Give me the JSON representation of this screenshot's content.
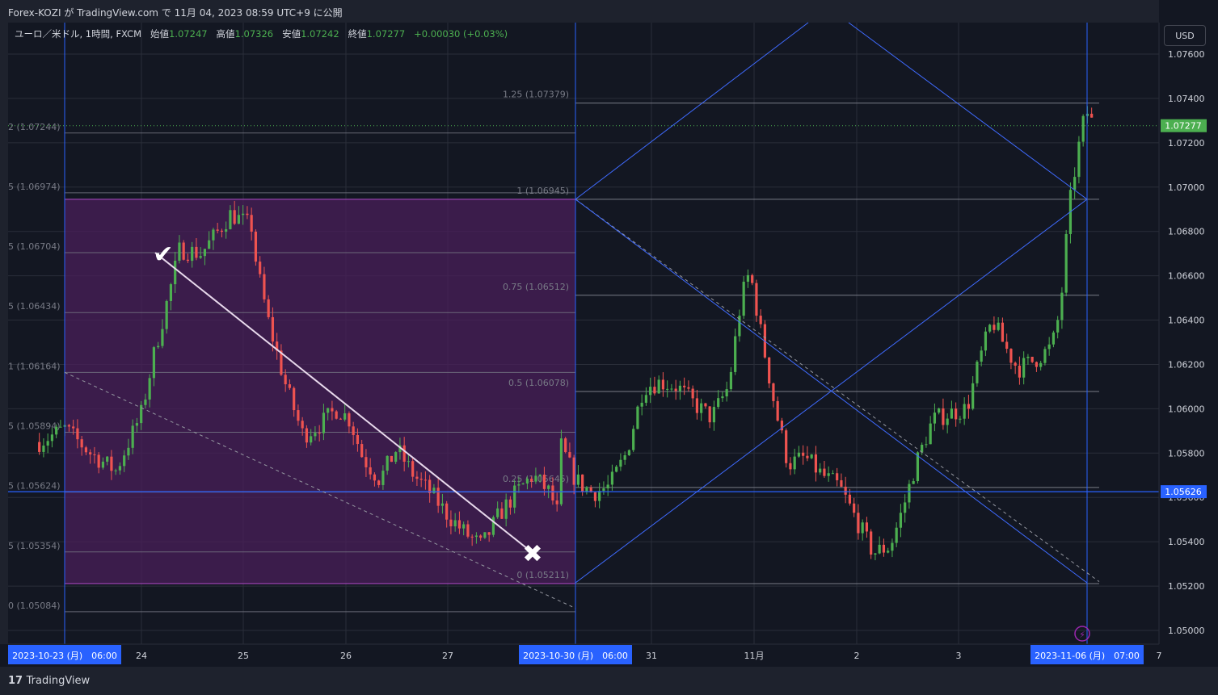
{
  "header": {
    "published": "Forex-KOZI が TradingView.com で 11月 04, 2023 08:59 UTC+9 に公開"
  },
  "legend": {
    "symbol": "ユーロ／米ドル, 1時間, FXCM",
    "open_label": "始値",
    "open": "1.07247",
    "high_label": "高値",
    "high": "1.07326",
    "low_label": "安値",
    "low": "1.07242",
    "close_label": "終値",
    "close": "1.07277",
    "change": "+0.00030 (+0.03%)"
  },
  "currency_button": "USD",
  "footer": {
    "brand": "TradingView"
  },
  "colors": {
    "up": "#4caf50",
    "down": "#ef5350",
    "bg": "#131722",
    "blue": "#2962ff",
    "zone": "#5b2a6b",
    "grid": "#2a2e39",
    "price": "#4caf50"
  },
  "chart_data": {
    "type": "candlestick",
    "symbol": "EURUSD",
    "timeframe": "1H",
    "ylim": [
      1.0495,
      1.0775
    ],
    "y_ticks": [
      "1.07600",
      "1.07400",
      "1.07200",
      "1.07000",
      "1.06800",
      "1.06600",
      "1.06400",
      "1.06200",
      "1.06000",
      "1.05800",
      "1.05600",
      "1.05400",
      "1.05200",
      "1.05000"
    ],
    "x_ticks": [
      "24",
      "25",
      "26",
      "27",
      "31",
      "11月",
      "2",
      "3",
      "7"
    ],
    "x_markers": [
      "2023-10-23 (月)　06:00",
      "2023-10-30 (月)　06:00",
      "2023-11-06 (月)　07:00"
    ],
    "current_price": "1.07277",
    "line_price": "1.05626",
    "close_path": [
      [
        "2023-10-23 00:00",
        1.0585
      ],
      [
        "2023-10-23 06:00",
        1.0591
      ],
      [
        "2023-10-23 12:00",
        1.058
      ],
      [
        "2023-10-23 18:00",
        1.0572
      ],
      [
        "2023-10-24 00:00",
        1.0598
      ],
      [
        "2023-10-24 03:00",
        1.0625
      ],
      [
        "2023-10-24 06:00",
        1.0648
      ],
      [
        "2023-10-24 09:00",
        1.0672
      ],
      [
        "2023-10-24 14:00",
        1.067
      ],
      [
        "2023-10-24 18:00",
        1.068
      ],
      [
        "2023-10-24 21:00",
        1.0688
      ],
      [
        "2023-10-25 02:00",
        1.0682
      ],
      [
        "2023-10-25 03:00",
        1.0665
      ],
      [
        "2023-10-25 06:00",
        1.0638
      ],
      [
        "2023-10-25 10:00",
        1.061
      ],
      [
        "2023-10-25 14:00",
        1.0588
      ],
      [
        "2023-10-25 18:00",
        1.0593
      ],
      [
        "2023-10-25 22:00",
        1.06
      ],
      [
        "2023-10-26 01:00",
        1.0595
      ],
      [
        "2023-10-26 04:00",
        1.0578
      ],
      [
        "2023-10-26 08:00",
        1.0568
      ],
      [
        "2023-10-26 12:00",
        1.0582
      ],
      [
        "2023-10-26 16:00",
        1.057
      ],
      [
        "2023-10-26 20:00",
        1.0562
      ],
      [
        "2023-10-27 00:00",
        1.0552
      ],
      [
        "2023-10-27 04:00",
        1.0544
      ],
      [
        "2023-10-27 08:00",
        1.0538
      ],
      [
        "2023-10-27 12:00",
        1.0552
      ],
      [
        "2023-10-27 16:00",
        1.0562
      ],
      [
        "2023-10-27 20:00",
        1.057
      ],
      [
        "2023-10-28 00:00",
        1.0562
      ],
      [
        "2023-10-28 02:00",
        1.0552
      ],
      [
        "2023-10-30 00:00",
        1.0586
      ],
      [
        "2023-10-30 04:00",
        1.0568
      ],
      [
        "2023-10-30 08:00",
        1.0562
      ],
      [
        "2023-10-30 12:00",
        1.0565
      ],
      [
        "2023-10-30 16:00",
        1.058
      ],
      [
        "2023-10-30 20:00",
        1.061
      ],
      [
        "2023-10-31 00:00",
        1.0612
      ],
      [
        "2023-10-31 04:00",
        1.061
      ],
      [
        "2023-10-31 08:00",
        1.0602
      ],
      [
        "2023-10-31 12:00",
        1.0596
      ],
      [
        "2023-10-31 16:00",
        1.061
      ],
      [
        "2023-10-31 19:00",
        1.065
      ],
      [
        "2023-10-31 21:00",
        1.0662
      ],
      [
        "2023-11-01 00:00",
        1.063
      ],
      [
        "2023-11-01 03:00",
        1.06
      ],
      [
        "2023-11-01 06:00",
        1.0575
      ],
      [
        "2023-11-01 10:00",
        1.0578
      ],
      [
        "2023-11-01 14:00",
        1.057
      ],
      [
        "2023-11-01 18:00",
        1.0565
      ],
      [
        "2023-11-01 22:00",
        1.055
      ],
      [
        "2023-11-02 02:00",
        1.0535
      ],
      [
        "2023-11-02 06:00",
        1.0538
      ],
      [
        "2023-11-02 09:00",
        1.0555
      ],
      [
        "2023-11-02 12:00",
        1.0575
      ],
      [
        "2023-11-02 16:00",
        1.0595
      ],
      [
        "2023-11-02 20:00",
        1.0598
      ],
      [
        "2023-11-03 00:00",
        1.06
      ],
      [
        "2023-11-03 03:00",
        1.0622
      ],
      [
        "2023-11-03 06:00",
        1.064
      ],
      [
        "2023-11-03 09:00",
        1.0628
      ],
      [
        "2023-11-03 12:00",
        1.0618
      ],
      [
        "2023-11-03 16:00",
        1.0622
      ],
      [
        "2023-11-03 20:00",
        1.0628
      ],
      [
        "2023-11-03 22:00",
        1.0645
      ],
      [
        "2023-11-04 00:00",
        1.069
      ],
      [
        "2023-11-04 02:00",
        1.0715
      ],
      [
        "2023-11-04 04:00",
        1.0735
      ],
      [
        "2023-11-04 06:00",
        1.0727
      ]
    ]
  },
  "fib_left": {
    "labels": [
      "2 (1.07244)",
      "5 (1.06974)",
      "5 (1.06704)",
      "5 (1.06434)",
      "1 (1.06164)",
      "5 (1.05894)",
      "5 (1.05624)",
      "5 (1.05354)",
      "0 (1.05084)"
    ]
  },
  "fib_right": {
    "labels": [
      "1.25 (1.07379)",
      "1 (1.06945)",
      "0.75 (1.06512)",
      "0.5 (1.06078)",
      "0.25 (1.05645)",
      "0 (1.05211)"
    ]
  },
  "markers": {
    "check": "✔",
    "cross": "✖"
  }
}
